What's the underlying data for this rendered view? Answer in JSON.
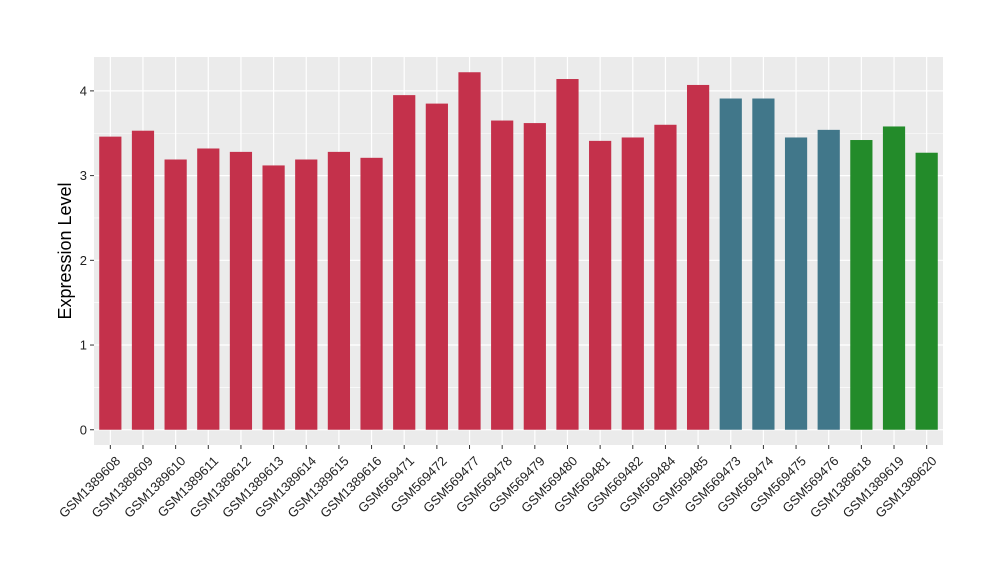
{
  "chart_data": {
    "type": "bar",
    "ylabel": "Expression Level",
    "xlabel": "",
    "ylim": [
      -0.18,
      4.4
    ],
    "yticks": [
      0,
      1,
      2,
      3,
      4
    ],
    "grid": true,
    "legend": "none",
    "panel_background": "#ebebeb",
    "grid_color": "#ffffff",
    "categories": [
      "GSM1389608",
      "GSM1389609",
      "GSM1389610",
      "GSM1389611",
      "GSM1389612",
      "GSM1389613",
      "GSM1389614",
      "GSM1389615",
      "GSM1389616",
      "GSM569471",
      "GSM569472",
      "GSM569477",
      "GSM569478",
      "GSM569479",
      "GSM569480",
      "GSM569481",
      "GSM569482",
      "GSM569484",
      "GSM569485",
      "GSM569473",
      "GSM569474",
      "GSM569475",
      "GSM569476",
      "GSM1389618",
      "GSM1389619",
      "GSM1389620"
    ],
    "values": [
      3.46,
      3.53,
      3.19,
      3.32,
      3.28,
      3.12,
      3.19,
      3.28,
      3.21,
      3.95,
      3.85,
      4.22,
      3.65,
      3.62,
      4.14,
      3.41,
      3.45,
      3.6,
      4.07,
      3.91,
      3.91,
      3.45,
      3.54,
      3.42,
      3.58,
      3.27
    ],
    "colors": [
      "#c4314b",
      "#c4314b",
      "#c4314b",
      "#c4314b",
      "#c4314b",
      "#c4314b",
      "#c4314b",
      "#c4314b",
      "#c4314b",
      "#c4314b",
      "#c4314b",
      "#c4314b",
      "#c4314b",
      "#c4314b",
      "#c4314b",
      "#c4314b",
      "#c4314b",
      "#c4314b",
      "#c4314b",
      "#41778a",
      "#41778a",
      "#41778a",
      "#41778a",
      "#238b2a",
      "#238b2a",
      "#238b2a"
    ]
  }
}
